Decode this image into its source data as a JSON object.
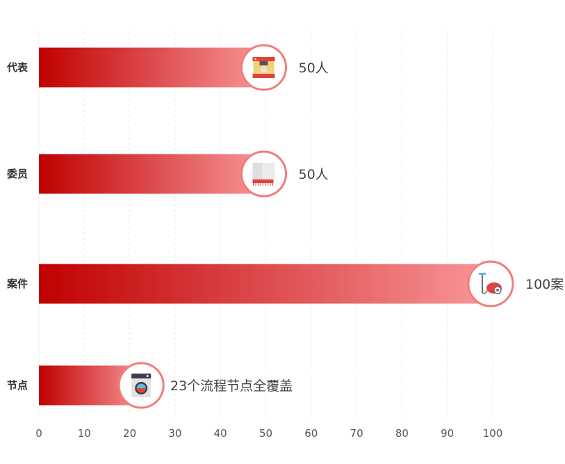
{
  "chart_data": {
    "type": "bar",
    "orientation": "horizontal",
    "categories": [
      "代表",
      "委员",
      "案件",
      "节点"
    ],
    "values": [
      50,
      50,
      100,
      23
    ],
    "data_labels": [
      "50人",
      "50人",
      "100案",
      "23个流程节点全覆盖"
    ],
    "icons": [
      "printer-icon",
      "towel-icon",
      "vacuum-cleaner-icon",
      "washing-machine-icon"
    ],
    "xlim": [
      0,
      100
    ],
    "x_ticks": [
      0,
      10,
      20,
      30,
      40,
      50,
      60,
      70,
      80,
      90,
      100
    ],
    "grid": true,
    "colors": {
      "bar_start": "#c00000",
      "bar_end": "#f99799",
      "icon_ring": "#f07d79",
      "grid": "#ecefd9"
    }
  }
}
